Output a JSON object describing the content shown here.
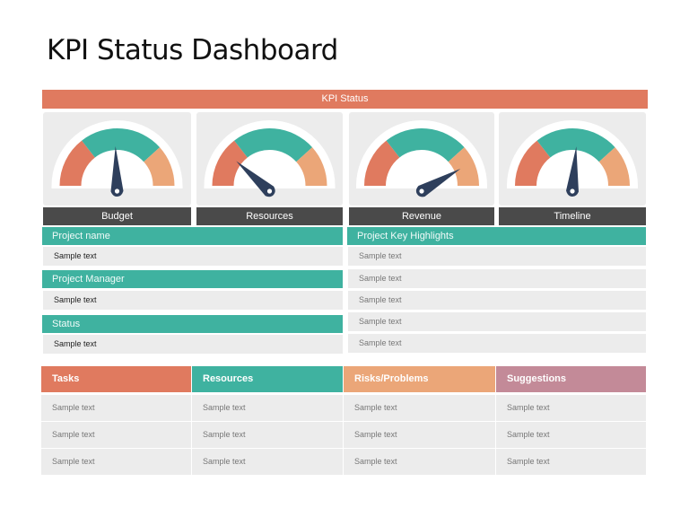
{
  "page": {
    "title": "KPI Status Dashboard"
  },
  "kpi_status": {
    "label": "KPI Status",
    "color": "#e07a5f"
  },
  "colors": {
    "coral": "#e07a5f",
    "teal": "#3fb2a0",
    "peach": "#eba678",
    "mauve": "#c38a98",
    "dark_gray": "#4a4a4a",
    "needle": "#2e3f5c",
    "card_bg": "#ececec"
  },
  "gauges": [
    {
      "label": "Budget",
      "needle_angle_deg": 92,
      "zone": "green"
    },
    {
      "label": "Resources",
      "needle_angle_deg": 138,
      "zone": "red"
    },
    {
      "label": "Revenue",
      "needle_angle_deg": 30,
      "zone": "orange"
    },
    {
      "label": "Timeline",
      "needle_angle_deg": 85,
      "zone": "green"
    }
  ],
  "project_info": {
    "sections": [
      {
        "header": "Project name",
        "value": "Sample text"
      },
      {
        "header": "Project Manager",
        "value": "Sample text"
      },
      {
        "header": "Status",
        "value": "Sample text"
      }
    ]
  },
  "highlights": {
    "header": "Project Key Highlights",
    "items": [
      "Sample text",
      "Sample text",
      "Sample text",
      "Sample text",
      "Sample text"
    ]
  },
  "table": {
    "columns": [
      {
        "label": "Tasks",
        "color": "#e07a5f"
      },
      {
        "label": "Resources",
        "color": "#3fb2a0"
      },
      {
        "label": "Risks/Problems",
        "color": "#eba678"
      },
      {
        "label": "Suggestions",
        "color": "#c38a98"
      }
    ],
    "rows": [
      [
        "Sample text",
        "Sample text",
        "Sample text",
        "Sample text"
      ],
      [
        "Sample text",
        "Sample text",
        "Sample text",
        "Sample text"
      ],
      [
        "Sample text",
        "Sample text",
        "Sample text",
        "Sample text"
      ]
    ]
  }
}
